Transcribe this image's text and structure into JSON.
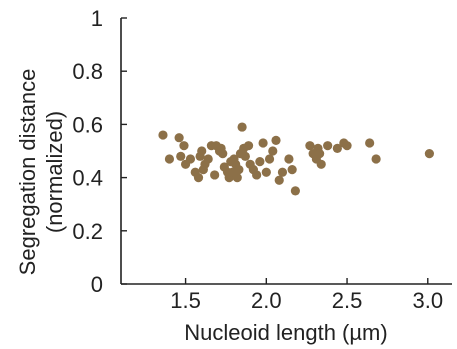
{
  "chart_data": {
    "type": "scatter",
    "xlabel": "Nucleoid length (µm)",
    "ylabel": "Segregation distance",
    "ylabel_sub": "(normalized)",
    "xlim": [
      1.1,
      3.15
    ],
    "ylim": [
      0,
      1
    ],
    "xticks": [
      1.5,
      2.0,
      2.5,
      3.0
    ],
    "xtick_labels": [
      "1.5",
      "2.0",
      "2.5",
      "3.0"
    ],
    "yticks": [
      0,
      0.2,
      0.4,
      0.6,
      0.8,
      1
    ],
    "ytick_labels": [
      "0",
      "0.2",
      "0.4",
      "0.6",
      "0.8",
      "1"
    ],
    "grid": false,
    "marker_color": "#8c7048",
    "series": [
      {
        "points": [
          [
            1.36,
            0.56
          ],
          [
            1.4,
            0.47
          ],
          [
            1.46,
            0.55
          ],
          [
            1.47,
            0.48
          ],
          [
            1.49,
            0.52
          ],
          [
            1.5,
            0.45
          ],
          [
            1.53,
            0.47
          ],
          [
            1.56,
            0.42
          ],
          [
            1.58,
            0.4
          ],
          [
            1.59,
            0.48
          ],
          [
            1.6,
            0.5
          ],
          [
            1.61,
            0.43
          ],
          [
            1.62,
            0.45
          ],
          [
            1.64,
            0.47
          ],
          [
            1.66,
            0.52
          ],
          [
            1.68,
            0.41
          ],
          [
            1.69,
            0.52
          ],
          [
            1.71,
            0.5
          ],
          [
            1.72,
            0.51
          ],
          [
            1.73,
            0.49
          ],
          [
            1.74,
            0.44
          ],
          [
            1.76,
            0.42
          ],
          [
            1.77,
            0.4
          ],
          [
            1.78,
            0.46
          ],
          [
            1.79,
            0.42
          ],
          [
            1.8,
            0.47
          ],
          [
            1.81,
            0.45
          ],
          [
            1.82,
            0.4
          ],
          [
            1.83,
            0.43
          ],
          [
            1.84,
            0.49
          ],
          [
            1.85,
            0.59
          ],
          [
            1.86,
            0.51
          ],
          [
            1.87,
            0.48
          ],
          [
            1.89,
            0.52
          ],
          [
            1.9,
            0.45
          ],
          [
            1.92,
            0.43
          ],
          [
            1.94,
            0.41
          ],
          [
            1.96,
            0.46
          ],
          [
            1.98,
            0.53
          ],
          [
            2.0,
            0.42
          ],
          [
            2.02,
            0.47
          ],
          [
            2.04,
            0.5
          ],
          [
            2.06,
            0.54
          ],
          [
            2.08,
            0.39
          ],
          [
            2.1,
            0.42
          ],
          [
            2.14,
            0.47
          ],
          [
            2.16,
            0.43
          ],
          [
            2.18,
            0.35
          ],
          [
            2.27,
            0.52
          ],
          [
            2.29,
            0.49
          ],
          [
            2.31,
            0.47
          ],
          [
            2.32,
            0.51
          ],
          [
            2.33,
            0.49
          ],
          [
            2.34,
            0.45
          ],
          [
            2.38,
            0.52
          ],
          [
            2.44,
            0.51
          ],
          [
            2.48,
            0.53
          ],
          [
            2.5,
            0.52
          ],
          [
            2.64,
            0.53
          ],
          [
            2.68,
            0.47
          ],
          [
            3.01,
            0.49
          ]
        ]
      }
    ]
  }
}
